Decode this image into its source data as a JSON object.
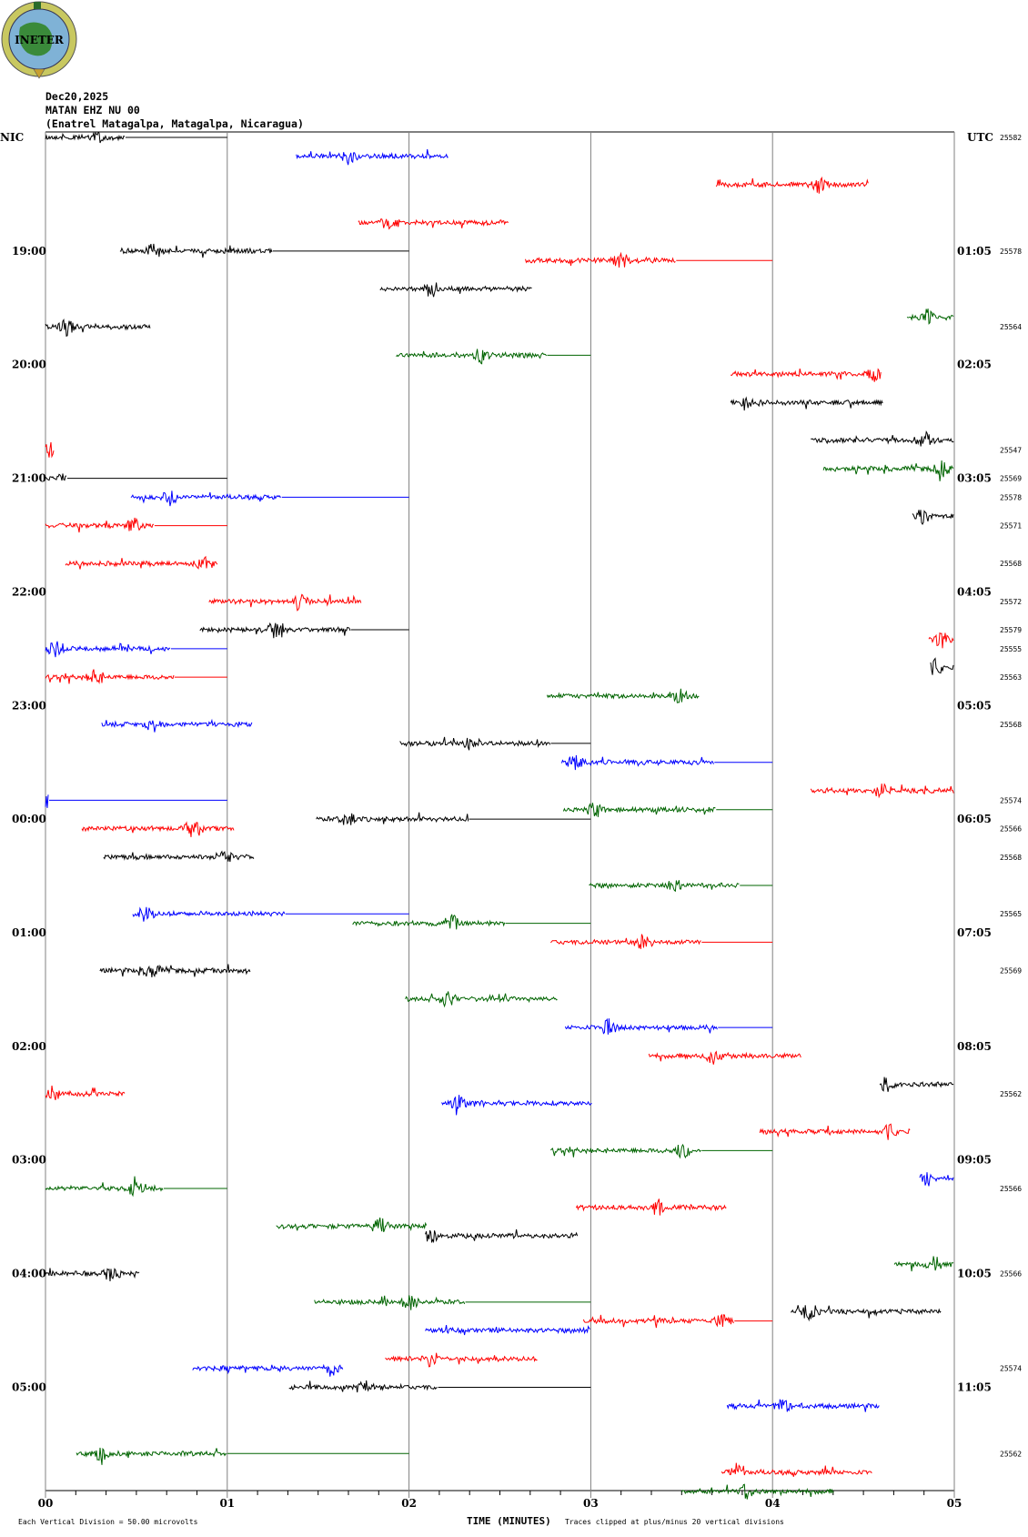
{
  "logo": {
    "text": "INETER"
  },
  "header": {
    "date": "Dec20,2025",
    "station": "MATAN EHZ NU 00",
    "location": "(Enatrel Matagalpa, Matagalpa, Nicaragua)"
  },
  "chart_data": {
    "type": "line",
    "title": "MATAN EHZ NU 00 helicorder",
    "xlabel": "TIME (MINUTES)",
    "xlim": [
      0,
      5
    ],
    "x_tick_labels": [
      "00",
      "01",
      "02",
      "03",
      "04",
      "05"
    ],
    "rows_total": 144,
    "row_minutes": 5,
    "left_timezone": "NIC",
    "right_timezone": "UTC",
    "left_hour_labels": [
      "19:00",
      "20:00",
      "21:00",
      "22:00",
      "23:00",
      "00:00",
      "01:00",
      "02:00",
      "03:00",
      "04:00",
      "05:00"
    ],
    "right_hour_labels": [
      "01:05",
      "02:05",
      "03:05",
      "04:05",
      "05:05",
      "06:05",
      "07:05",
      "08:05",
      "09:05",
      "10:05",
      "11:05"
    ],
    "row_colors": [
      "#000000",
      "#ff0000",
      "#0000ff",
      "#006400"
    ],
    "grid_color": "#808080",
    "scale_note": "Each Vertical Division =   50.00 microvolts",
    "clip_note": "Traces clipped at plus/minus 20 vertical divisions",
    "counts": [
      {
        "row": 0,
        "value": "25582"
      },
      {
        "row": 12,
        "value": "25578"
      },
      {
        "row": 20,
        "value": "25564"
      },
      {
        "row": 33,
        "value": "25547"
      },
      {
        "row": 36,
        "value": "25569"
      },
      {
        "row": 38,
        "value": "25578"
      },
      {
        "row": 41,
        "value": "25571"
      },
      {
        "row": 45,
        "value": "25568"
      },
      {
        "row": 49,
        "value": "25572"
      },
      {
        "row": 52,
        "value": "25579"
      },
      {
        "row": 54,
        "value": "25555"
      },
      {
        "row": 57,
        "value": "25563"
      },
      {
        "row": 62,
        "value": "25568"
      },
      {
        "row": 70,
        "value": "25574"
      },
      {
        "row": 73,
        "value": "25566"
      },
      {
        "row": 76,
        "value": "25568"
      },
      {
        "row": 82,
        "value": "25565"
      },
      {
        "row": 88,
        "value": "25569"
      },
      {
        "row": 101,
        "value": "25562"
      },
      {
        "row": 111,
        "value": "25566"
      },
      {
        "row": 120,
        "value": "25566"
      },
      {
        "row": 130,
        "value": "25574"
      },
      {
        "row": 139,
        "value": "25562"
      }
    ],
    "segments": [
      [
        0,
        0.0,
        0.44,
        1.0
      ],
      [
        2,
        1.38,
        2.22,
        null
      ],
      [
        5,
        3.69,
        4.53,
        null
      ],
      [
        9,
        1.72,
        2.55,
        null
      ],
      [
        12,
        0.41,
        1.25,
        2.0
      ],
      [
        13,
        2.64,
        3.47,
        4.0
      ],
      [
        16,
        1.84,
        2.68,
        null
      ],
      [
        19,
        4.74,
        5.0,
        null
      ],
      [
        20,
        0.0,
        0.58,
        null
      ],
      [
        23,
        1.93,
        2.76,
        3.0
      ],
      [
        25,
        3.77,
        4.6,
        null
      ],
      [
        28,
        3.77,
        4.61,
        null
      ],
      [
        32,
        4.21,
        5.0,
        null
      ],
      [
        33,
        0.0,
        0.05,
        null
      ],
      [
        35,
        4.28,
        5.0,
        null
      ],
      [
        36,
        0.0,
        0.12,
        1.0
      ],
      [
        38,
        0.47,
        1.3,
        2.0
      ],
      [
        40,
        4.77,
        5.0,
        null
      ],
      [
        41,
        0.0,
        0.6,
        1.0
      ],
      [
        45,
        0.11,
        0.95,
        null
      ],
      [
        49,
        0.9,
        1.74,
        null
      ],
      [
        52,
        0.85,
        1.68,
        2.0
      ],
      [
        53,
        4.86,
        5.0,
        null
      ],
      [
        54,
        0.0,
        0.69,
        1.0
      ],
      [
        56,
        4.87,
        5.0,
        null
      ],
      [
        57,
        0.0,
        0.71,
        1.0
      ],
      [
        59,
        2.76,
        3.6,
        null
      ],
      [
        62,
        0.31,
        1.14,
        null
      ],
      [
        64,
        1.95,
        2.78,
        3.0
      ],
      [
        66,
        2.84,
        3.68,
        4.0
      ],
      [
        69,
        4.21,
        5.0,
        null
      ],
      [
        70,
        0.0,
        0.02,
        1.0
      ],
      [
        71,
        2.85,
        3.69,
        4.0
      ],
      [
        72,
        1.49,
        2.33,
        3.0
      ],
      [
        73,
        0.2,
        1.04,
        null
      ],
      [
        76,
        0.32,
        1.15,
        null
      ],
      [
        79,
        2.99,
        3.82,
        4.0
      ],
      [
        82,
        0.48,
        1.32,
        2.0
      ],
      [
        83,
        1.69,
        2.53,
        3.0
      ],
      [
        85,
        2.78,
        3.61,
        4.0
      ],
      [
        88,
        0.3,
        1.13,
        null
      ],
      [
        91,
        1.98,
        2.82,
        null
      ],
      [
        94,
        2.86,
        3.7,
        4.0
      ],
      [
        97,
        3.32,
        4.16,
        null
      ],
      [
        100,
        4.59,
        5.0,
        null
      ],
      [
        101,
        0.0,
        0.44,
        null
      ],
      [
        102,
        2.18,
        3.01,
        null
      ],
      [
        105,
        3.93,
        4.76,
        null
      ],
      [
        107,
        2.78,
        3.61,
        4.0
      ],
      [
        110,
        4.81,
        5.0,
        null
      ],
      [
        111,
        0.0,
        0.65,
        1.0
      ],
      [
        113,
        2.92,
        3.75,
        null
      ],
      [
        115,
        1.27,
        2.1,
        null
      ],
      [
        116,
        2.09,
        2.93,
        null
      ],
      [
        119,
        4.67,
        5.0,
        null
      ],
      [
        120,
        0.0,
        0.52,
        null
      ],
      [
        123,
        1.48,
        2.31,
        3.0
      ],
      [
        124,
        4.1,
        4.93,
        null
      ],
      [
        125,
        2.96,
        3.79,
        4.0
      ],
      [
        126,
        2.09,
        3.0,
        null
      ],
      [
        129,
        1.87,
        2.71,
        null
      ],
      [
        130,
        0.81,
        1.64,
        null
      ],
      [
        132,
        1.34,
        2.16,
        3.0
      ],
      [
        134,
        3.75,
        4.59,
        null
      ],
      [
        139,
        0.17,
        1.0,
        2.0
      ],
      [
        141,
        3.72,
        4.55,
        null
      ],
      [
        143,
        3.5,
        4.34,
        null
      ]
    ]
  }
}
